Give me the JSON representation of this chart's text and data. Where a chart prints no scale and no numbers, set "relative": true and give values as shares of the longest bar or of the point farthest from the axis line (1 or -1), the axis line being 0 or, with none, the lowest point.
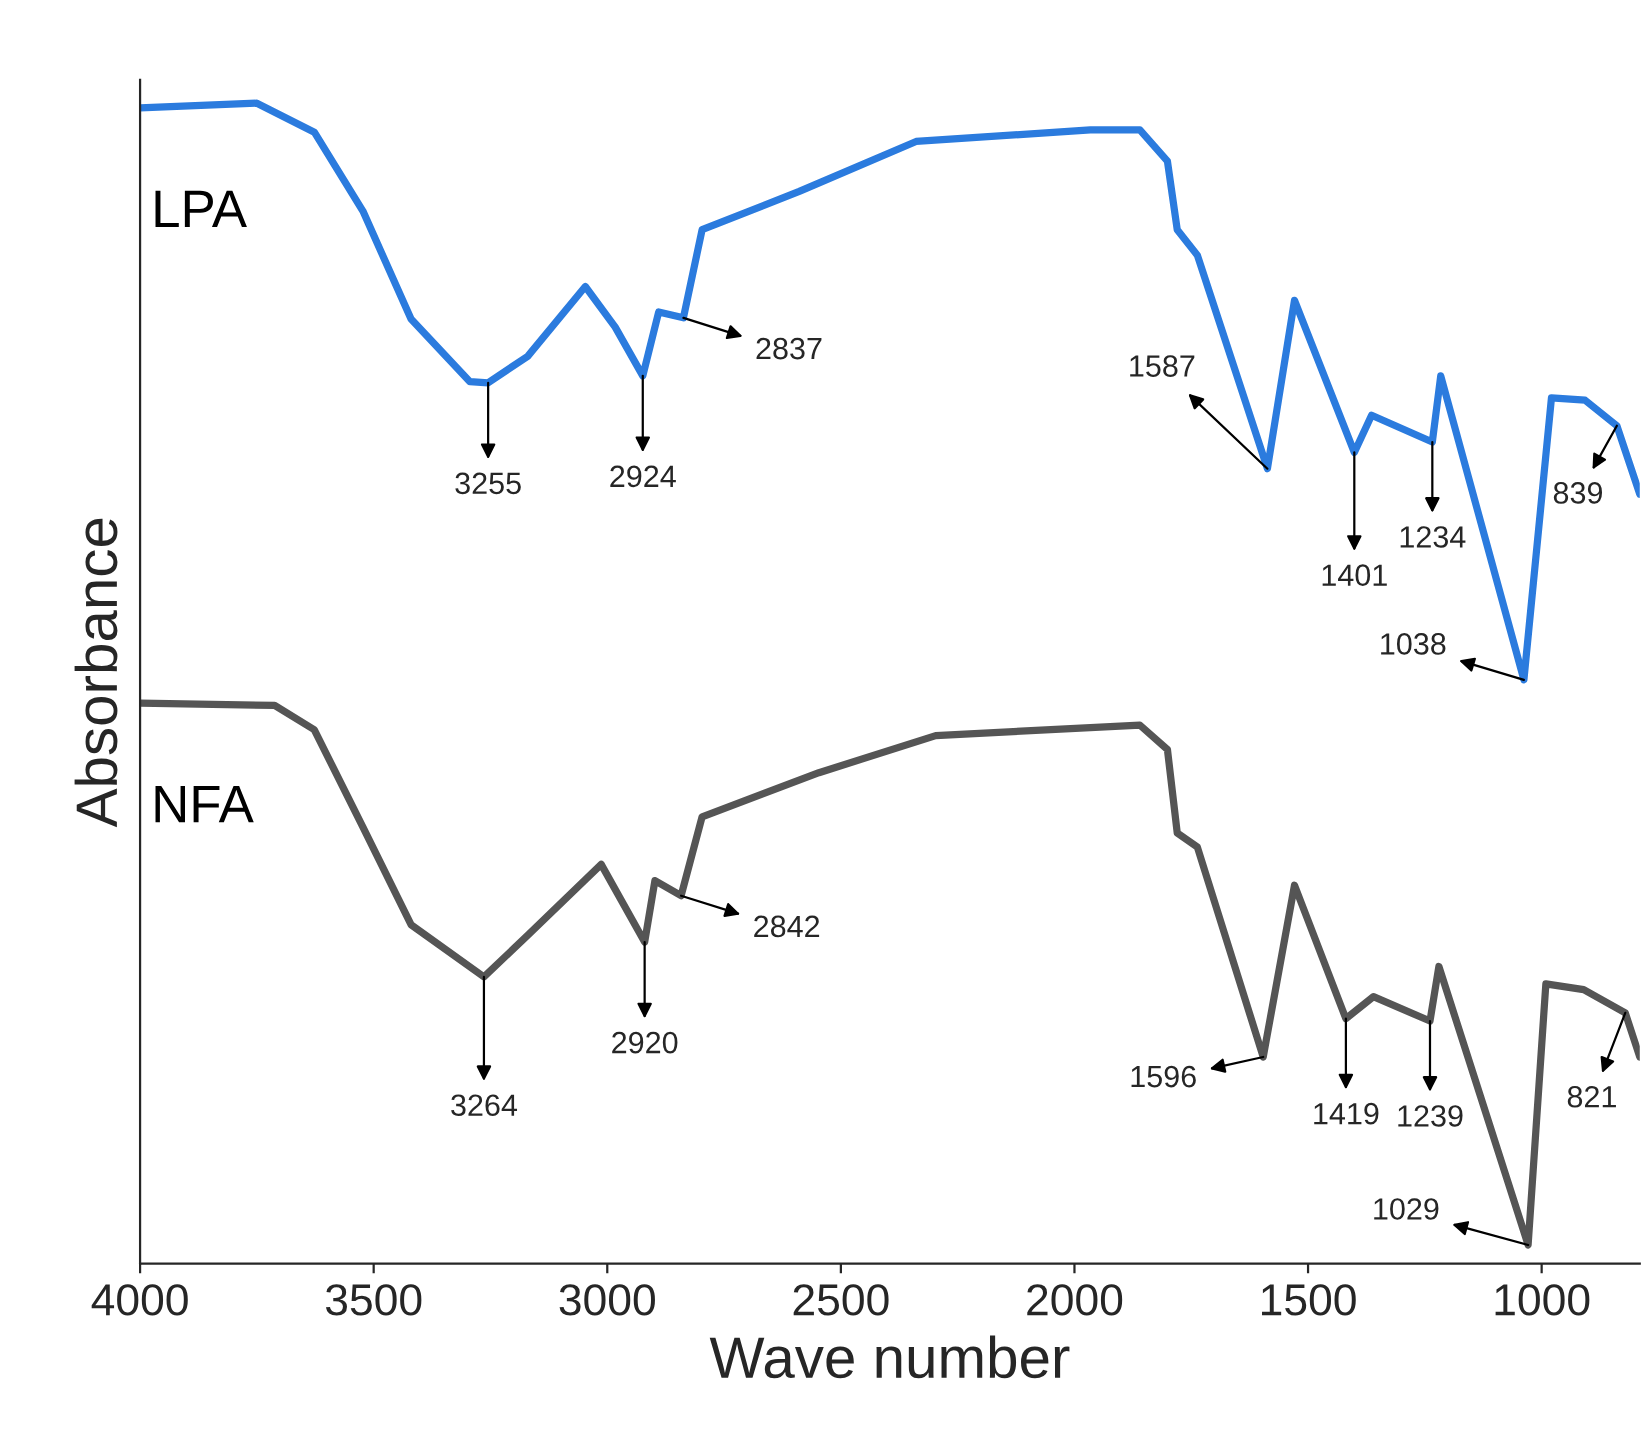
{
  "chart_data": {
    "type": "line",
    "relative": true,
    "xlabel": "Wave number",
    "ylabel": "Absorbance",
    "xlim": [
      4000,
      790
    ],
    "xticks": [
      4000,
      3500,
      3000,
      2500,
      2000,
      1500,
      1000
    ],
    "grid": false,
    "legend": false,
    "marker": "none",
    "line_style": "solid",
    "series": [
      {
        "name": "LPA",
        "color": "#2b7bde",
        "x": [
          4000,
          3750,
          3627,
          3523,
          3420,
          3294,
          3255,
          3170,
          3047,
          2983,
          2924,
          2890,
          2837,
          2797,
          2589,
          2339,
          1966,
          1860,
          1801,
          1780,
          1737,
          1587,
          1529,
          1401,
          1364,
          1234,
          1216,
          1038,
          979,
          907,
          839,
          790
        ],
        "values": [
          0.996,
          1,
          0.975,
          0.907,
          0.814,
          0.76,
          0.759,
          0.782,
          0.842,
          0.807,
          0.765,
          0.82,
          0.815,
          0.891,
          0.924,
          0.967,
          0.977,
          0.977,
          0.95,
          0.891,
          0.869,
          0.685,
          0.83,
          0.699,
          0.731,
          0.708,
          0.765,
          0.503,
          0.746,
          0.744,
          0.722,
          0.663
        ]
      },
      {
        "name": "NFA",
        "color": "#555555",
        "x": [
          4000,
          3712,
          3627,
          3523,
          3420,
          3264,
          3170,
          3013,
          2920,
          2898,
          2842,
          2797,
          2547,
          2297,
          1860,
          1801,
          1780,
          1737,
          1596,
          1529,
          1419,
          1360,
          1239,
          1220,
          1029,
          991,
          910,
          821,
          790
        ],
        "values": [
          0.483,
          0.481,
          0.46,
          0.376,
          0.292,
          0.247,
          0.283,
          0.344,
          0.277,
          0.33,
          0.317,
          0.385,
          0.423,
          0.455,
          0.464,
          0.443,
          0.371,
          0.359,
          0.178,
          0.326,
          0.211,
          0.23,
          0.209,
          0.256,
          0.016,
          0.241,
          0.236,
          0.216,
          0.178
        ]
      }
    ],
    "annotations": [
      {
        "text": "3255",
        "x": 3255,
        "y": 0.759
      },
      {
        "text": "2924",
        "x": 2924,
        "y": 0.765
      },
      {
        "text": "2837",
        "x": 2837,
        "y": 0.815
      },
      {
        "text": "1587",
        "x": 1587,
        "y": 0.685
      },
      {
        "text": "1401",
        "x": 1401,
        "y": 0.699
      },
      {
        "text": "1234",
        "x": 1234,
        "y": 0.708
      },
      {
        "text": "1038",
        "x": 1038,
        "y": 0.503
      },
      {
        "text": "839",
        "x": 839,
        "y": 0.722
      },
      {
        "text": "3264",
        "x": 3264,
        "y": 0.247
      },
      {
        "text": "2920",
        "x": 2920,
        "y": 0.277
      },
      {
        "text": "2842",
        "x": 2842,
        "y": 0.317
      },
      {
        "text": "1596",
        "x": 1596,
        "y": 0.178
      },
      {
        "text": "1419",
        "x": 1419,
        "y": 0.211
      },
      {
        "text": "1239",
        "x": 1239,
        "y": 0.209
      },
      {
        "text": "1029",
        "x": 1029,
        "y": 0.016
      },
      {
        "text": "821",
        "x": 821,
        "y": 0.216
      }
    ]
  }
}
